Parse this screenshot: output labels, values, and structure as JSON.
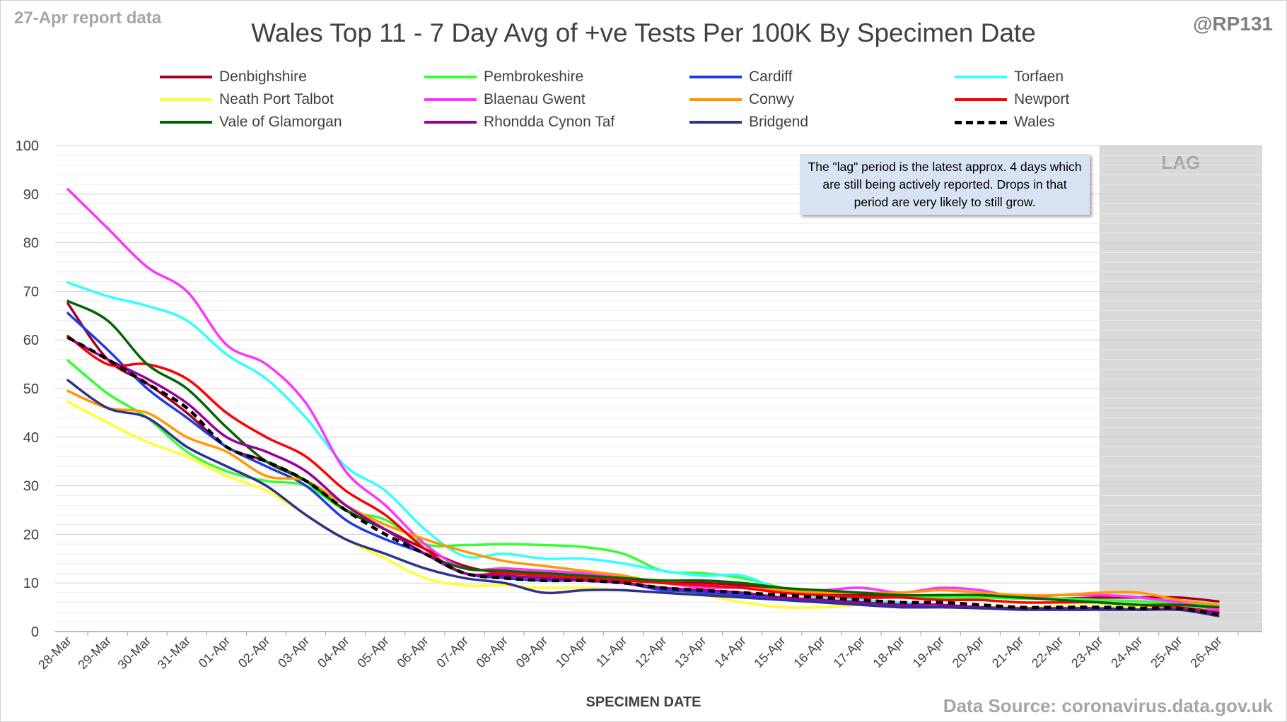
{
  "header": {
    "report_tag": "27-Apr report data",
    "handle": "@RP131"
  },
  "footer": {
    "source": "Data Source: coronavirus.data.gov.uk"
  },
  "annotation": {
    "text": "The \"lag\" period is the latest approx. 4 days which are still being actively reported.  Drops in that period are very likely to still grow."
  },
  "chart_data": {
    "type": "line",
    "title": "Wales Top 11 - 7 Day Avg of +ve Tests Per 100K By Specimen Date",
    "xlabel": "SPECIMEN DATE",
    "ylabel": "",
    "ylim": [
      0,
      100
    ],
    "yticks": [
      0,
      10,
      20,
      30,
      40,
      50,
      60,
      70,
      80,
      90,
      100
    ],
    "grid": "horizontal",
    "legend_position": "top",
    "lag_region": {
      "label": "LAG",
      "from": "23-Apr",
      "to": "26-Apr",
      "color": "#d9d9d9"
    },
    "x": [
      "28-Mar",
      "29-Mar",
      "30-Mar",
      "31-Mar",
      "01-Apr",
      "02-Apr",
      "03-Apr",
      "04-Apr",
      "05-Apr",
      "06-Apr",
      "07-Apr",
      "08-Apr",
      "09-Apr",
      "10-Apr",
      "11-Apr",
      "12-Apr",
      "13-Apr",
      "14-Apr",
      "15-Apr",
      "16-Apr",
      "17-Apr",
      "18-Apr",
      "19-Apr",
      "20-Apr",
      "21-Apr",
      "22-Apr",
      "23-Apr",
      "24-Apr",
      "25-Apr",
      "26-Apr"
    ],
    "series": [
      {
        "name": "Denbighshire",
        "color": "#a50021",
        "dashed": false,
        "values": [
          67.5,
          56,
          51,
          45,
          38,
          35,
          31,
          25,
          21,
          17,
          13.5,
          12,
          12,
          11.5,
          11,
          10,
          10,
          9.5,
          8.5,
          8,
          7.5,
          7.2,
          7,
          7,
          7,
          6.8,
          7,
          7,
          7,
          6.2
        ]
      },
      {
        "name": "Pembrokeshire",
        "color": "#33ff33",
        "dashed": false,
        "values": [
          55.8,
          49,
          44,
          37,
          33,
          31,
          30,
          25,
          23,
          18,
          17.8,
          18,
          17.8,
          17.4,
          16,
          12.5,
          12,
          11,
          9,
          7.5,
          7,
          7,
          7,
          7,
          6.8,
          6.8,
          6.5,
          6.2,
          5.8,
          5.2
        ]
      },
      {
        "name": "Cardiff",
        "color": "#1f3ae6",
        "dashed": false,
        "values": [
          65.5,
          58,
          50,
          44,
          38,
          34,
          30,
          23,
          19,
          16,
          12,
          11,
          10.5,
          10.5,
          10,
          8.5,
          8,
          7.5,
          7,
          6.5,
          6,
          5.5,
          5.2,
          5,
          4.6,
          4.5,
          4.5,
          4.5,
          4.5,
          3.8
        ]
      },
      {
        "name": "Torfaen",
        "color": "#33ffff",
        "dashed": false,
        "values": [
          71.8,
          69,
          67,
          64,
          57,
          52,
          44,
          34,
          29,
          21,
          15.5,
          16,
          15,
          15,
          14,
          12.5,
          11.5,
          11.5,
          8.5,
          7,
          6.5,
          6,
          5.5,
          5,
          4.8,
          5,
          5,
          5.5,
          5,
          4.5
        ]
      },
      {
        "name": "Neath Port Talbot",
        "color": "#ffff33",
        "dashed": false,
        "values": [
          47.3,
          43,
          39,
          36,
          32,
          29,
          24,
          19,
          15,
          11,
          9.5,
          9.5,
          9,
          9,
          8.5,
          8,
          7.5,
          6,
          5,
          5,
          5.5,
          5.2,
          5.2,
          5.2,
          5,
          5.2,
          5.2,
          5,
          5,
          4
        ]
      },
      {
        "name": "Blaenau Gwent",
        "color": "#ff33ff",
        "dashed": false,
        "values": [
          91,
          83,
          75,
          70,
          59,
          55,
          47,
          33,
          26,
          18,
          13,
          13,
          12.5,
          12,
          11,
          10,
          9,
          9,
          8.5,
          8.5,
          9,
          8,
          9,
          8.5,
          7,
          7.5,
          7.5,
          7,
          6,
          4.5
        ]
      },
      {
        "name": "Conwy",
        "color": "#ff9900",
        "dashed": false,
        "values": [
          49.5,
          46,
          45,
          40,
          37,
          32,
          31,
          26,
          22,
          19,
          16.5,
          14.5,
          13.5,
          12.5,
          11.5,
          10,
          9.5,
          9,
          8.5,
          8,
          8,
          8,
          8.5,
          8,
          7.5,
          7.5,
          8,
          8,
          6.5,
          5.5
        ]
      },
      {
        "name": "Newport",
        "color": "#ff0000",
        "dashed": false,
        "values": [
          60.8,
          55,
          55,
          52,
          45,
          40,
          36,
          29,
          24,
          17,
          12,
          12,
          11.5,
          11,
          10.5,
          10,
          9.5,
          9,
          8,
          7.5,
          7,
          7,
          6.5,
          6.5,
          6,
          6,
          6,
          5.5,
          5,
          4
        ]
      },
      {
        "name": "Vale of Glamorgan",
        "color": "#006600",
        "dashed": false,
        "values": [
          68,
          64,
          55,
          50,
          42,
          35,
          31,
          25,
          21,
          16,
          13,
          12.5,
          12,
          11.5,
          11,
          10.5,
          10.5,
          10,
          9,
          8.5,
          8,
          7.5,
          7.5,
          7.5,
          7,
          6.5,
          6,
          5.5,
          5.5,
          5
        ]
      },
      {
        "name": "Rhondda Cynon Taf",
        "color": "#990099",
        "dashed": false,
        "values": [
          60.5,
          56,
          52,
          47,
          40,
          37,
          33,
          26,
          21,
          16,
          12,
          11.5,
          11,
          10.5,
          10,
          9,
          8.5,
          8,
          7,
          6.5,
          6,
          5.5,
          5.5,
          5,
          4.8,
          4.8,
          4.8,
          4.5,
          4.5,
          3.8
        ]
      },
      {
        "name": "Bridgend",
        "color": "#2e3192",
        "dashed": false,
        "values": [
          51.7,
          46,
          44,
          38,
          34,
          30,
          24,
          19,
          16,
          13,
          11,
          10,
          8,
          8.5,
          8.5,
          8,
          7.5,
          7,
          6.5,
          6,
          5.5,
          5,
          5,
          4.8,
          4.5,
          4.5,
          4.5,
          4.5,
          4.5,
          3.2
        ]
      },
      {
        "name": "Wales",
        "color": "#000000",
        "dashed": true,
        "values": [
          60.5,
          56,
          51,
          46,
          38,
          35,
          31,
          25,
          20,
          16,
          12,
          11,
          10.5,
          10.5,
          10,
          9,
          8.5,
          8,
          7.5,
          7,
          6.5,
          6,
          6,
          5.5,
          5,
          5,
          5,
          4.8,
          4.8,
          3.5
        ]
      }
    ]
  }
}
